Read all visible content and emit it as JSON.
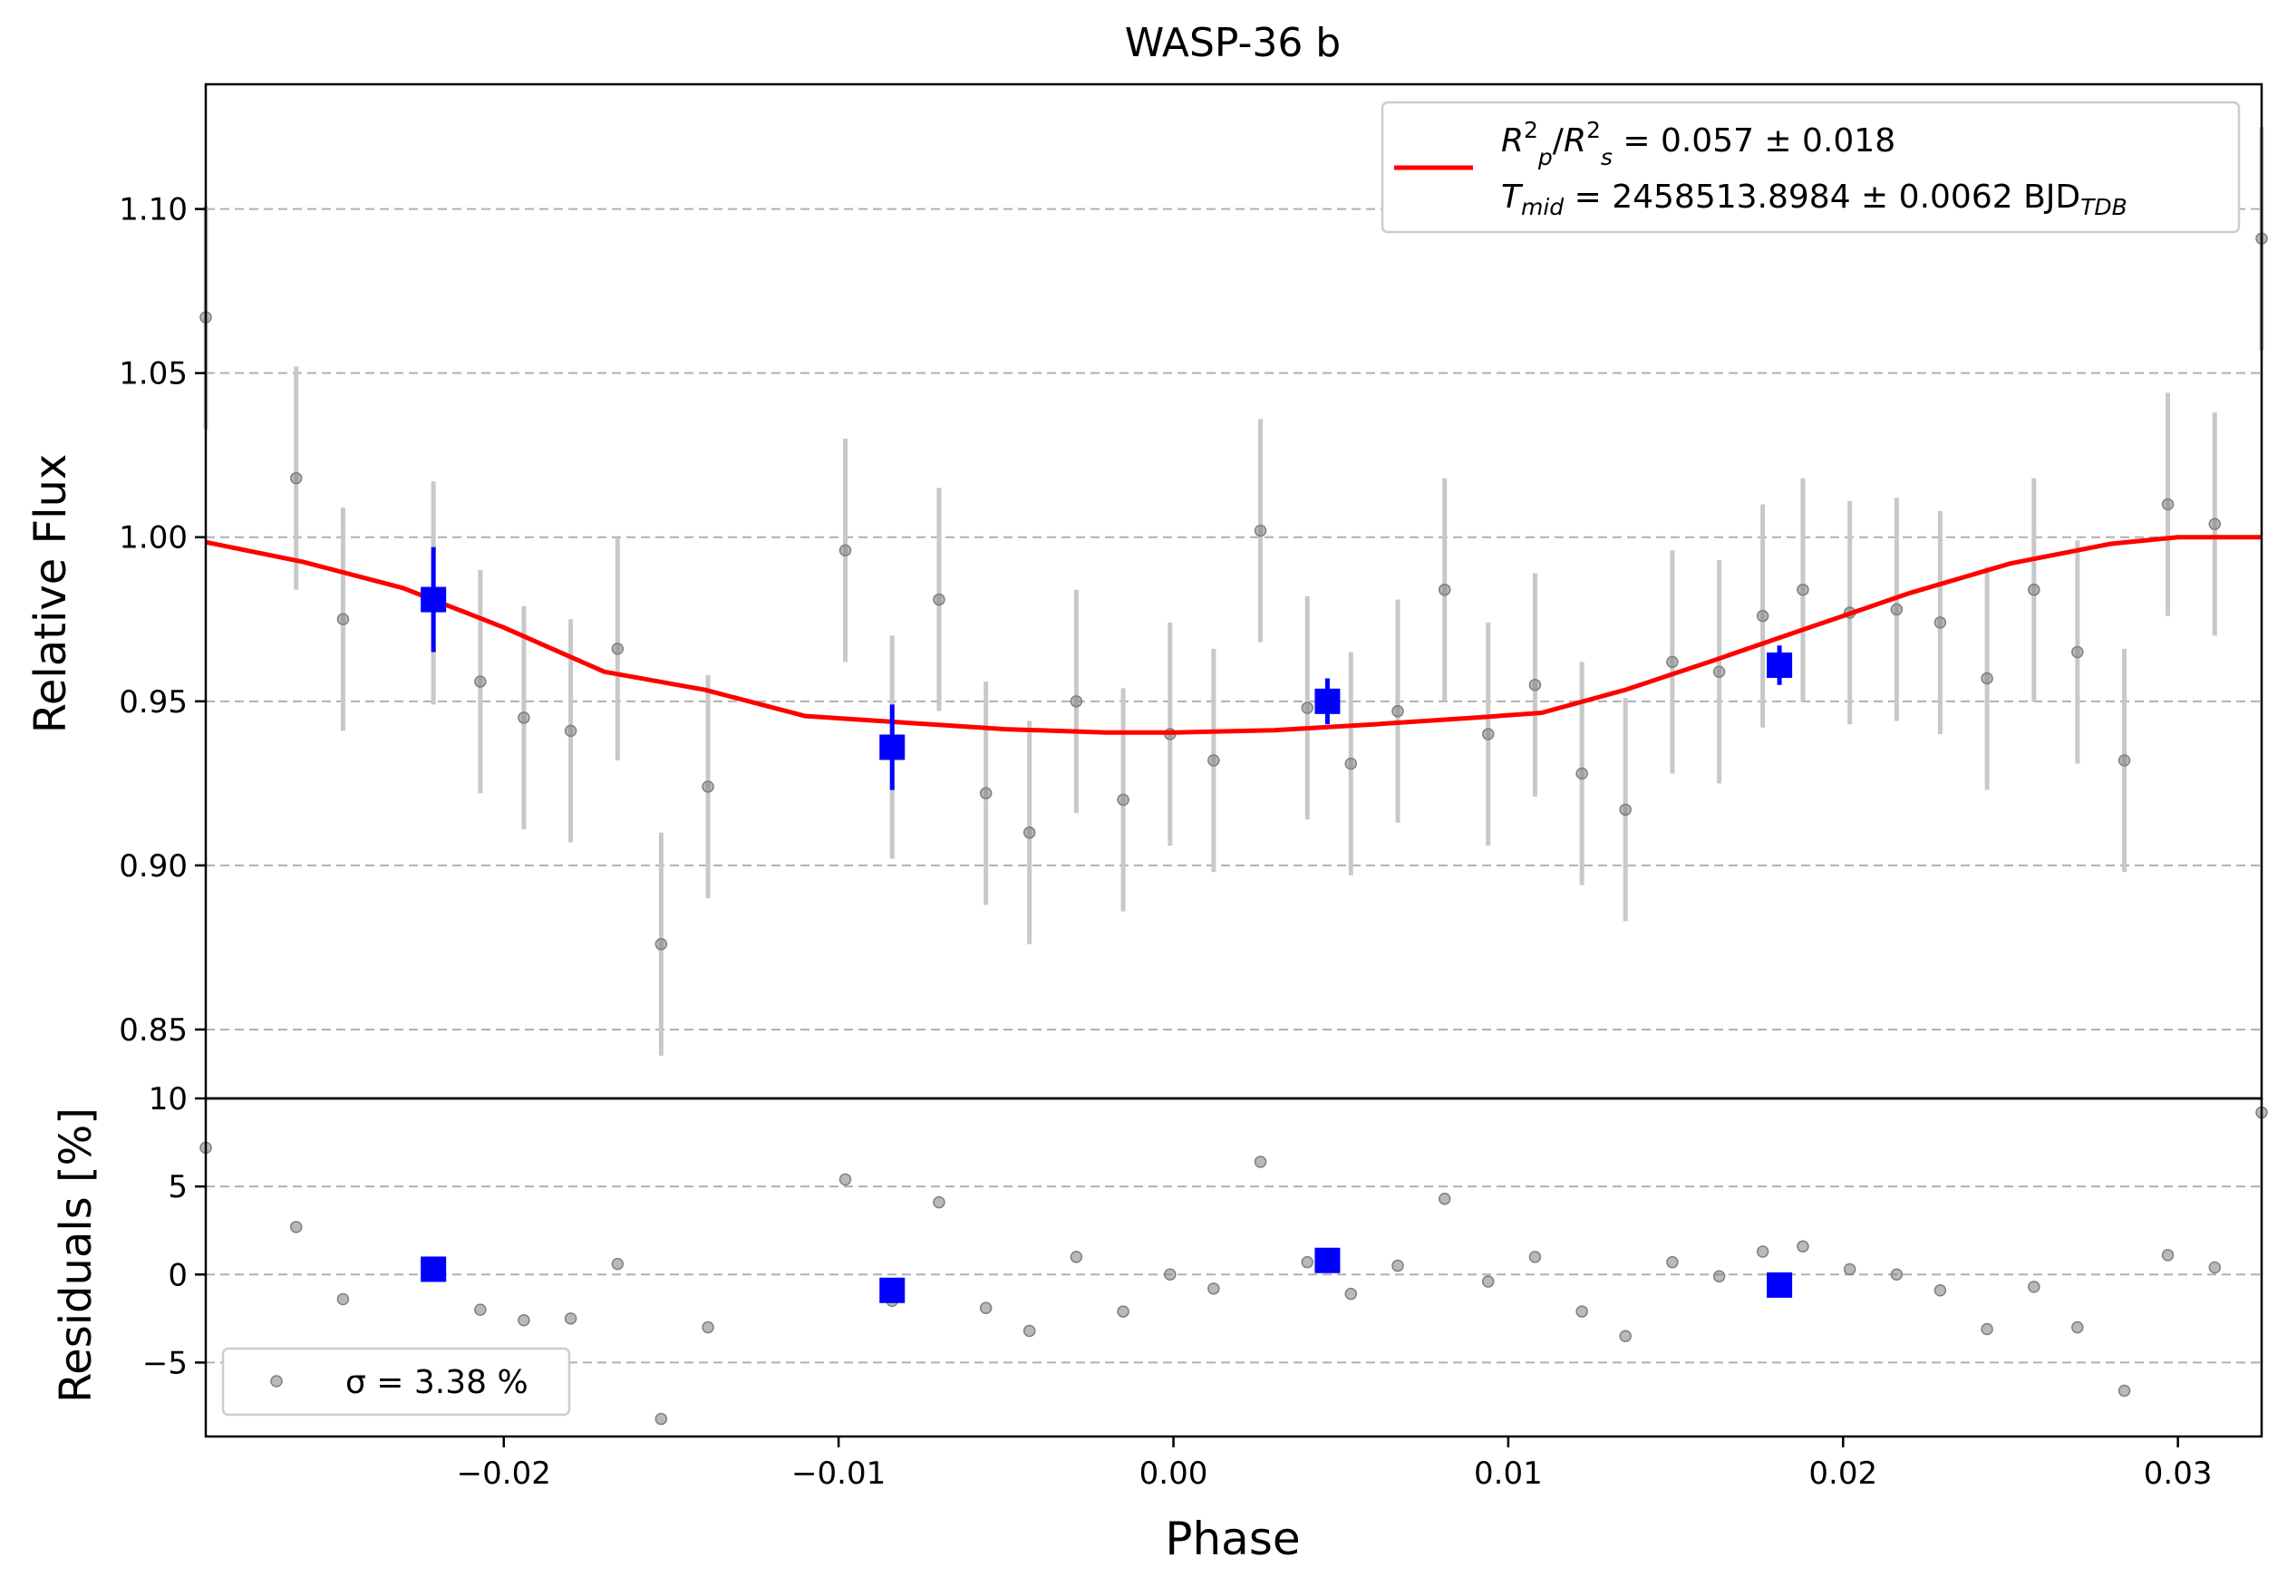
{
  "chart_data": {
    "type": "scatter",
    "title": "WASP-36 b",
    "xlabel": "Phase",
    "ylabel_top": "Relative Flux",
    "ylabel_bottom": "Residuals [%]",
    "xlim": [
      -0.0289,
      0.0325
    ],
    "ylim_top": [
      0.829,
      1.138
    ],
    "ylim_bottom": [
      -9.2,
      10
    ],
    "x_ticks": [
      {
        "value": -0.02,
        "label": "−0.02"
      },
      {
        "value": -0.01,
        "label": "−0.01"
      },
      {
        "value": 0.0,
        "label": "0.00"
      },
      {
        "value": 0.01,
        "label": "0.01"
      },
      {
        "value": 0.02,
        "label": "0.02"
      },
      {
        "value": 0.03,
        "label": "0.03"
      }
    ],
    "y_ticks_top": [
      {
        "value": 0.85,
        "label": "0.85"
      },
      {
        "value": 0.9,
        "label": "0.90"
      },
      {
        "value": 0.95,
        "label": "0.95"
      },
      {
        "value": 1.0,
        "label": "1.00"
      },
      {
        "value": 1.05,
        "label": "1.05"
      },
      {
        "value": 1.1,
        "label": "1.10"
      }
    ],
    "y_ticks_bottom": [
      {
        "value": -5,
        "label": "−5"
      },
      {
        "value": 0,
        "label": "0"
      },
      {
        "value": 5,
        "label": "5"
      },
      {
        "value": 10,
        "label": "10"
      }
    ],
    "grid": "horizontal dashed",
    "legend_top": {
      "placement": "top-right",
      "line1_prefix": "R",
      "line1_text": " = 0.057 ± 0.018",
      "line2_prefix": "T",
      "line2_sub": "mid",
      "line2_text": " = 2458513.8984 ± 0.0062 BJD",
      "line2_suffix_sub": "TDB"
    },
    "legend_bottom": {
      "placement": "lower-left",
      "text": "σ = 3.38 %"
    },
    "colors": {
      "data": "#808080",
      "binned": "#0000ff",
      "model": "#ff0000",
      "errorbar": "#c8c8c8",
      "grid": "#b0b0b0"
    },
    "series": [
      {
        "kind": "data",
        "x": [
          -0.0289,
          -0.0262,
          -0.0248,
          -0.0221,
          -0.0207,
          -0.0194,
          -0.018,
          -0.0166,
          -0.0153,
          -0.0139,
          -0.0098,
          -0.0084,
          -0.007,
          -0.0056,
          -0.0043,
          -0.0029,
          -0.0015,
          -0.0001,
          0.0012,
          0.0026,
          0.004,
          0.0053,
          0.0067,
          0.0081,
          0.0094,
          0.0108,
          0.0122,
          0.0135,
          0.0149,
          0.0163,
          0.0176,
          0.0188,
          0.0202,
          0.0216,
          0.0229,
          0.0243,
          0.0257,
          0.027,
          0.0284,
          0.0297,
          0.0311,
          0.0325
        ],
        "y": [
          1.067,
          1.018,
          0.975,
          0.983,
          0.956,
          0.945,
          0.941,
          0.966,
          0.876,
          0.924,
          0.996,
          0.936,
          0.981,
          0.922,
          0.91,
          0.95,
          0.92,
          0.94,
          0.932,
          1.002,
          0.948,
          0.931,
          0.947,
          0.984,
          0.94,
          0.955,
          0.928,
          0.917,
          0.962,
          0.959,
          0.976,
          0.984,
          0.977,
          0.978,
          0.974,
          0.957,
          0.984,
          0.965,
          0.932,
          1.01,
          1.004,
          1.091
        ],
        "yerr": 0.034,
        "residuals": [
          7.2,
          2.7,
          -1.4,
          0.3,
          -2.0,
          -2.6,
          -2.5,
          0.6,
          -8.2,
          -3.0,
          5.4,
          -1.5,
          4.1,
          -1.9,
          -3.2,
          1.0,
          -2.1,
          0.0,
          -0.8,
          6.4,
          0.7,
          -1.1,
          0.5,
          4.3,
          -0.4,
          1.0,
          -2.1,
          -3.5,
          0.7,
          -0.1,
          1.3,
          1.6,
          0.3,
          0.0,
          -0.9,
          -3.1,
          -0.7,
          -3.0,
          -6.6,
          1.1,
          0.4,
          9.2
        ]
      },
      {
        "kind": "binned",
        "x": [
          -0.0221,
          -0.0084,
          0.0046,
          0.0181
        ],
        "y": [
          0.981,
          0.936,
          0.95,
          0.961
        ],
        "yerr": [
          0.016,
          0.013,
          0.007,
          0.006
        ],
        "residuals": [
          0.3,
          -0.9,
          0.8,
          -0.6
        ]
      },
      {
        "kind": "model",
        "x": [
          -0.0289,
          -0.026,
          -0.023,
          -0.02,
          -0.017,
          -0.014,
          -0.011,
          -0.008,
          -0.005,
          -0.002,
          0.0,
          0.003,
          0.006,
          0.009,
          0.011,
          0.0135,
          0.016,
          0.019,
          0.022,
          0.025,
          0.028,
          0.03,
          0.0325
        ],
        "y": [
          0.9985,
          0.9925,
          0.9845,
          0.9725,
          0.959,
          0.9535,
          0.9455,
          0.9435,
          0.9415,
          0.9405,
          0.9405,
          0.9412,
          0.943,
          0.945,
          0.9465,
          0.9535,
          0.962,
          0.9725,
          0.983,
          0.992,
          0.998,
          1.0,
          1.0
        ]
      }
    ]
  }
}
